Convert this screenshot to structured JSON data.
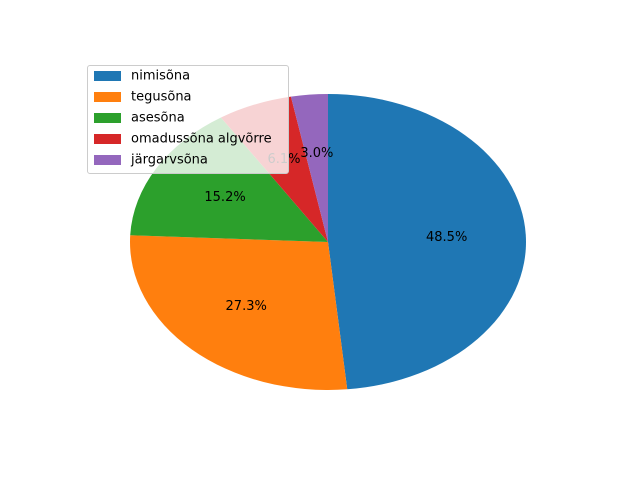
{
  "chart_data": {
    "type": "pie",
    "categories": [
      "nimisõna",
      "tegusõna",
      "asesõna",
      "omadussõna algvõrre",
      "järgarvsõna"
    ],
    "values": [
      48.5,
      27.3,
      15.2,
      6.1,
      3.0
    ],
    "labels": [
      "48.5%",
      "27.3%",
      "15.2%",
      "6.1%",
      "3.0%"
    ],
    "colors": [
      "#1f77b4",
      "#ff7f0e",
      "#2ca02c",
      "#d62728",
      "#9467bd"
    ],
    "start_angle_deg": 90,
    "direction": "clockwise",
    "title": "",
    "legend": {
      "placement": "upper-left",
      "entries": [
        "nimisõna",
        "tegusõna",
        "asesõna",
        "omadussõna algvõrre",
        "järgarvsõna"
      ]
    }
  }
}
